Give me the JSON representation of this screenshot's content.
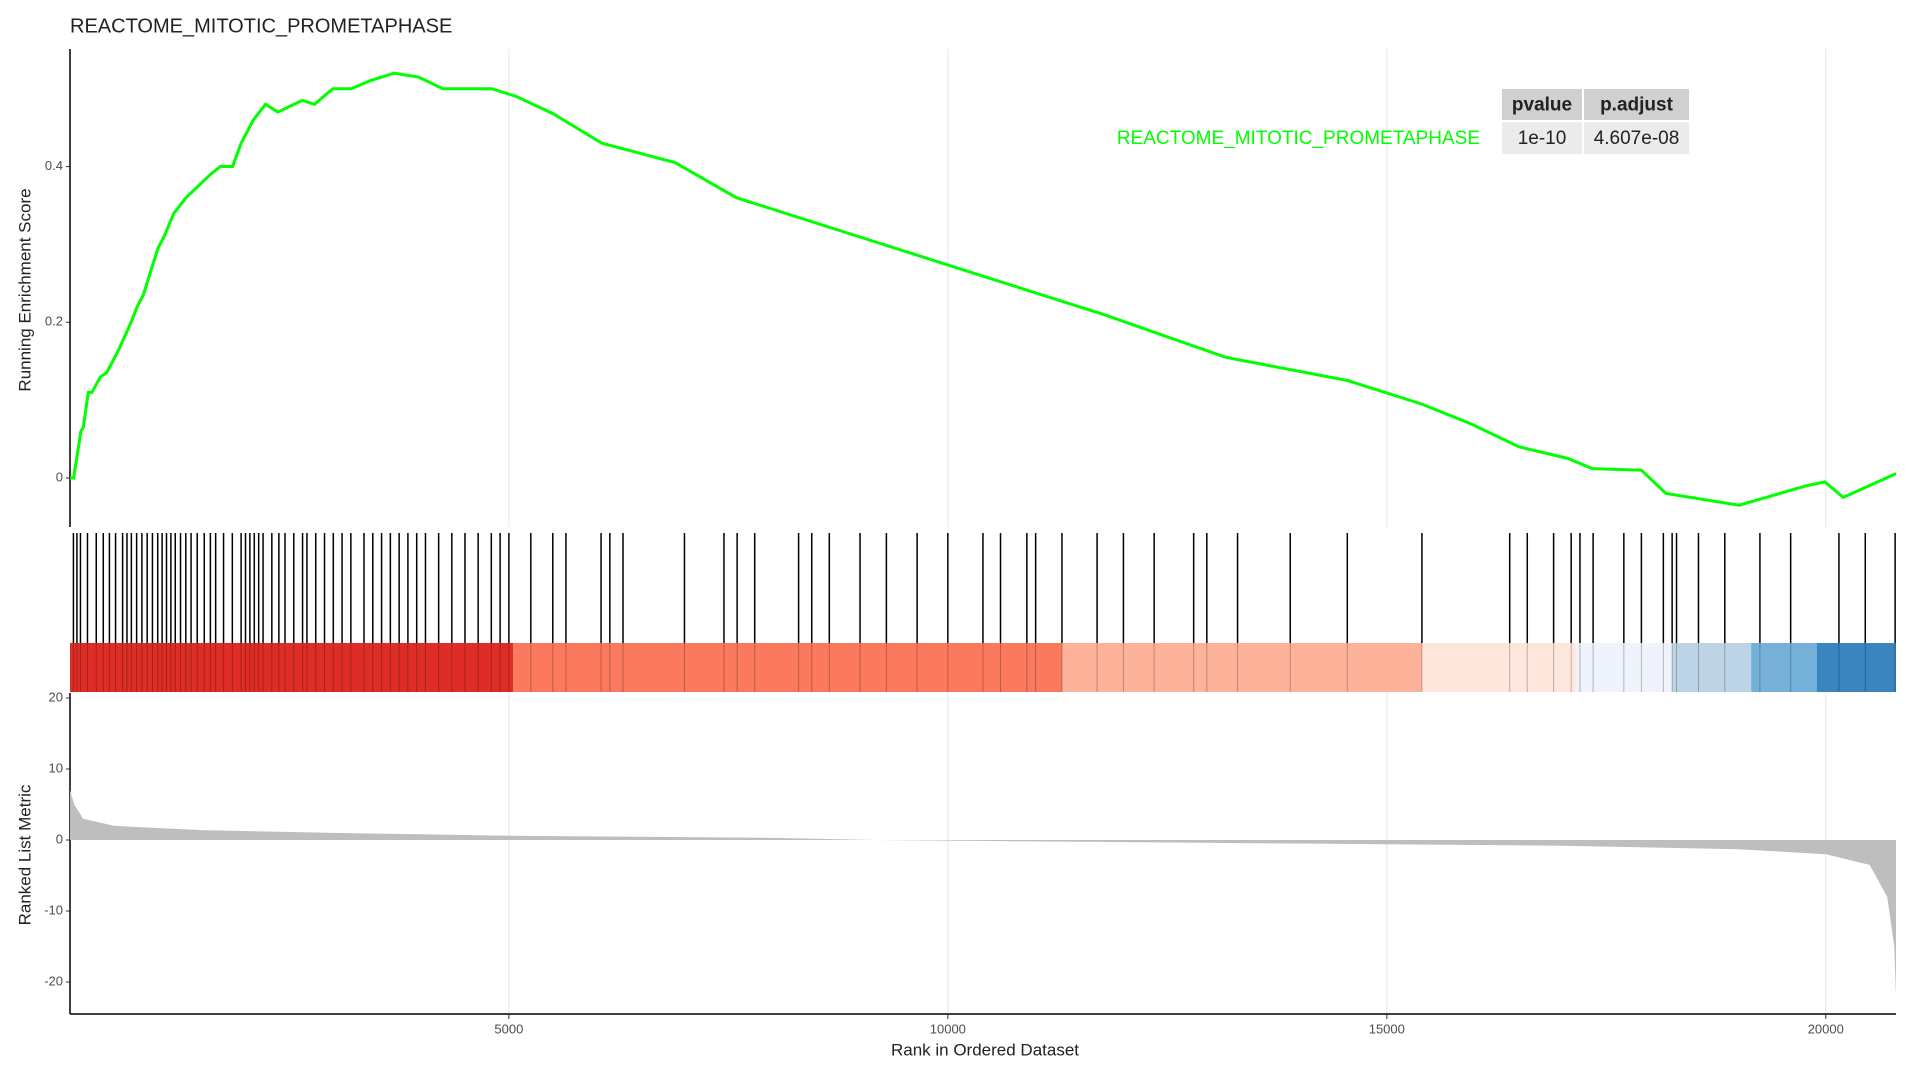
{
  "chart_data": [
    {
      "type": "line",
      "title": "REACTOME_MITOTIC_PROMETAPHASE",
      "y_label": "Running Enrichment Score",
      "series": [
        {
          "name": "REACTOME_MITOTIC_PROMETAPHASE",
          "color": "#00ff00",
          "x": [
            1,
            42,
            98,
            125,
            153,
            209,
            251,
            348,
            418,
            488,
            557,
            697,
            766,
            836,
            933,
            1003,
            1073,
            1184,
            1323,
            1463,
            1602,
            1713,
            1853,
            1950,
            2020,
            2090,
            2229,
            2368,
            2647,
            2786,
            2995,
            3204,
            3413,
            3692,
            3970,
            4249,
            4806,
            5085,
            5503,
            6060,
            6896,
            7592,
            8986,
            10379,
            11773,
            13166,
            14559,
            15395,
            15950,
            16507,
            17064,
            17343,
            17900,
            18180,
            19014,
            19780,
            19990,
            20200,
            20790,
            20800
          ],
          "values": [
            0,
            0,
            0.04,
            0.06,
            0.065,
            0.11,
            0.11,
            0.13,
            0.135,
            0.15,
            0.165,
            0.2,
            0.22,
            0.235,
            0.27,
            0.295,
            0.31,
            0.34,
            0.36,
            0.375,
            0.39,
            0.4,
            0.4,
            0.43,
            0.445,
            0.46,
            0.48,
            0.47,
            0.485,
            0.48,
            0.5,
            0.5,
            0.51,
            0.52,
            0.515,
            0.5,
            0.5,
            0.49,
            0.468,
            0.43,
            0.405,
            0.36,
            0.31,
            0.26,
            0.21,
            0.155,
            0.125,
            0.095,
            0.07,
            0.04,
            0.025,
            0.012,
            0.01,
            -0.02,
            -0.035,
            -0.01,
            -0.005,
            -0.025,
            0.005,
            0.005
          ]
        }
      ],
      "ylim": [
        -0.063,
        0.551
      ],
      "yticks": [
        0.0,
        0.2,
        0.4
      ],
      "grid": true,
      "table": {
        "columns": [
          "pvalue",
          "p.adjust"
        ],
        "rows": [
          [
            "1e-10",
            "4.607e-08"
          ]
        ]
      }
    },
    {
      "type": "rug",
      "color": "#000000",
      "hits": [
        40,
        80,
        120,
        200,
        300,
        380,
        450,
        520,
        600,
        650,
        700,
        760,
        820,
        880,
        940,
        1000,
        1050,
        1100,
        1150,
        1200,
        1260,
        1320,
        1380,
        1450,
        1530,
        1600,
        1660,
        1750,
        1850,
        1950,
        2000,
        2050,
        2100,
        2150,
        2200,
        2300,
        2380,
        2450,
        2550,
        2650,
        2700,
        2800,
        2900,
        3000,
        3100,
        3200,
        3350,
        3450,
        3550,
        3650,
        3750,
        3850,
        3950,
        4050,
        4200,
        4350,
        4500,
        4650,
        4800,
        4900,
        5000,
        5250,
        5500,
        5650,
        6050,
        6150,
        6300,
        7000,
        7450,
        7600,
        7800,
        8300,
        8450,
        8650,
        9000,
        9300,
        9650,
        10000,
        10400,
        10600,
        10900,
        11000,
        11300,
        11700,
        12000,
        12350,
        12800,
        12950,
        13300,
        13900,
        14550,
        15400,
        16400,
        16600,
        16900,
        17100,
        17200,
        17350,
        17700,
        17900,
        18150,
        18250,
        18300,
        18550,
        18850,
        19250,
        19600,
        20150,
        20450,
        20790
      ],
      "bands": {
        "edges": [
          1,
          5050,
          11300,
          15400,
          17150,
          18250,
          19150,
          19900,
          20800
        ],
        "colors": [
          "#de2d26",
          "#fb7a5d",
          "#fcb39a",
          "#fee6dc",
          "#eef3fc",
          "#bcd4e6",
          "#74b0d8",
          "#3a84c0"
        ]
      }
    },
    {
      "type": "area",
      "y_label": "Ranked List Metric",
      "x_label": "Rank in Ordered Dataset",
      "color": "#bebebe",
      "x": [
        1,
        50,
        150,
        500,
        1500,
        3000,
        5000,
        8000,
        9200,
        11000,
        14000,
        17000,
        19000,
        20000,
        20500,
        20700,
        20780,
        20800
      ],
      "values": [
        7,
        5,
        3,
        2,
        1.4,
        1,
        0.6,
        0.3,
        0,
        -0.2,
        -0.5,
        -0.8,
        -1.3,
        -2,
        -3.5,
        -8,
        -15,
        -22
      ],
      "xlim": [
        1,
        20800
      ],
      "xticks": [
        5000,
        10000,
        15000,
        20000
      ],
      "ylim": [
        -24.5,
        20.7
      ],
      "yticks": [
        -20,
        -10,
        0,
        10,
        20
      ],
      "grid": true
    }
  ]
}
